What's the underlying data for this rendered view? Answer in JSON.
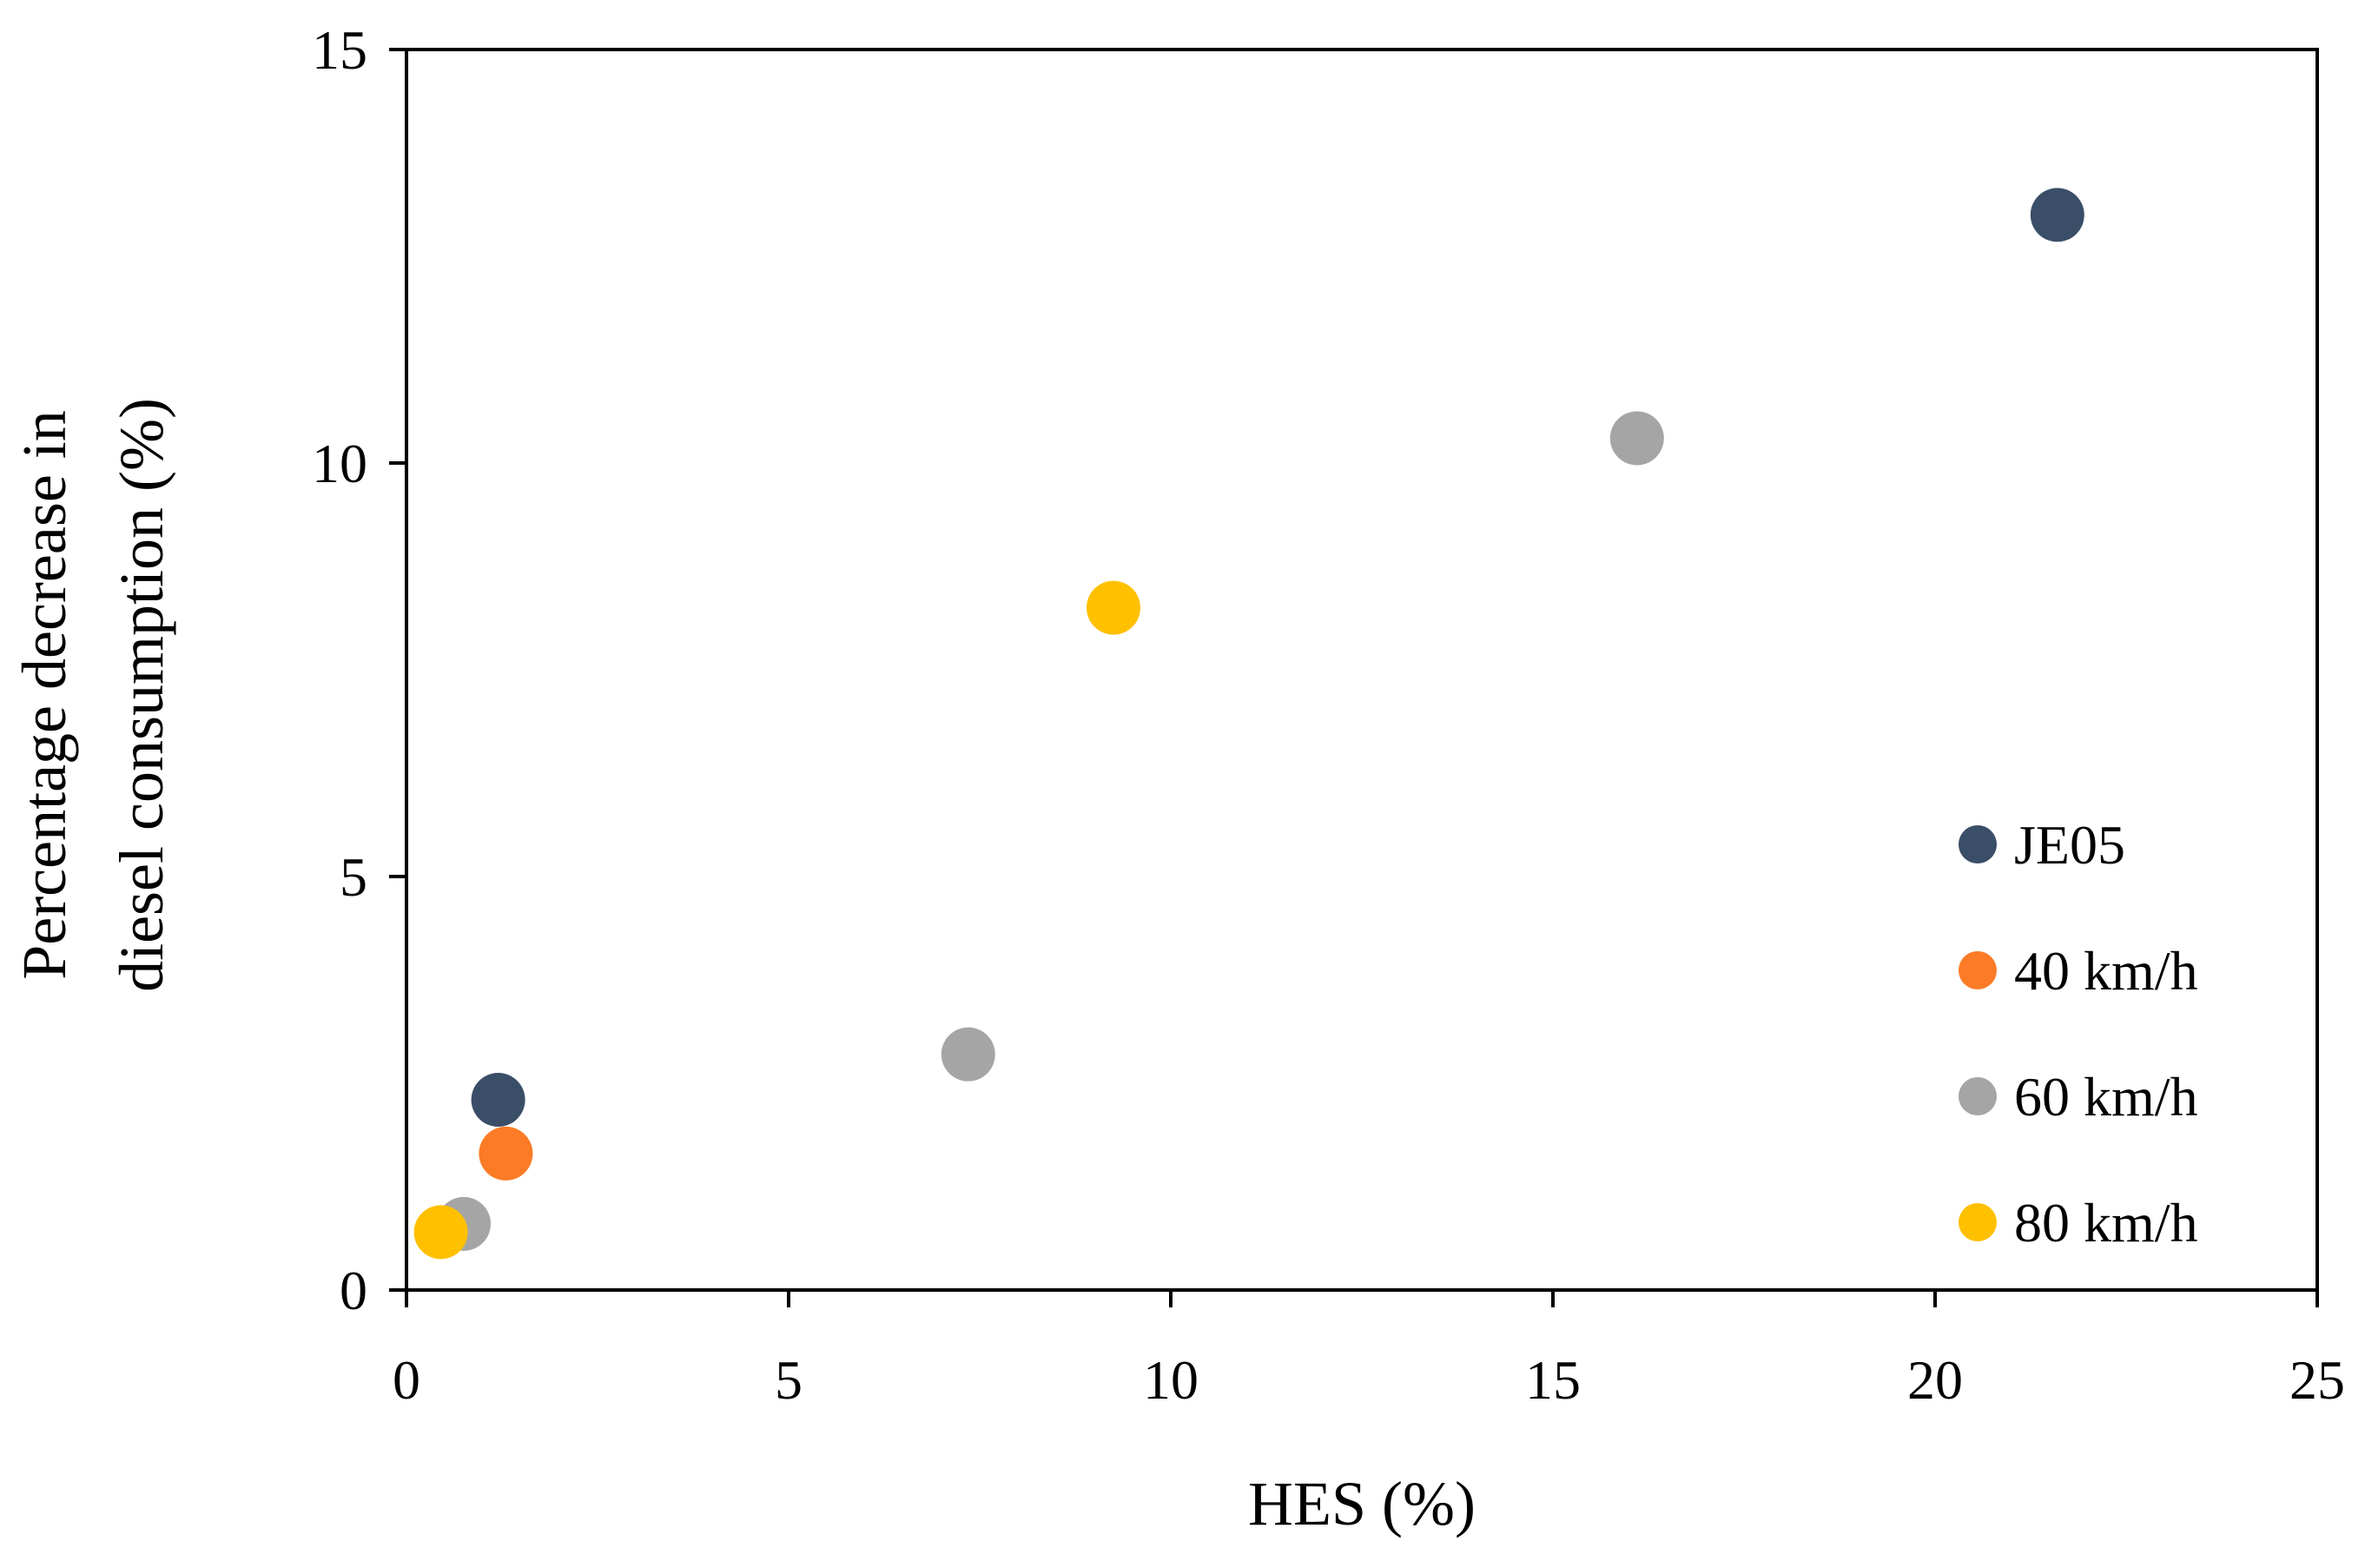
{
  "chart_data": {
    "type": "scatter",
    "xlabel": "HES (%)",
    "ylabel_lines": [
      "Percentage decrease in",
      "diesel consumption (%)"
    ],
    "xlim": [
      0,
      25
    ],
    "ylim": [
      0,
      15
    ],
    "xticks": [
      0,
      5,
      10,
      15,
      20,
      25
    ],
    "yticks": [
      0,
      5,
      10,
      15
    ],
    "xtick_labels": [
      "0",
      "5",
      "10",
      "15",
      "20",
      "25"
    ],
    "ytick_labels": [
      "0",
      "5",
      "10",
      "15"
    ],
    "grid": false,
    "legend_position": "bottom-right",
    "series": [
      {
        "name": "JE05",
        "color": "#3b4e68",
        "points": [
          {
            "x": 1.2,
            "y": 2.3
          },
          {
            "x": 21.6,
            "y": 13.0
          }
        ]
      },
      {
        "name": "40 km/h",
        "color": "#fb7b26",
        "points": [
          {
            "x": 1.3,
            "y": 1.65
          }
        ]
      },
      {
        "name": "60 km/h",
        "color": "#a5a5a5",
        "points": [
          {
            "x": 0.75,
            "y": 0.8
          },
          {
            "x": 7.35,
            "y": 2.85
          },
          {
            "x": 16.1,
            "y": 10.3
          }
        ]
      },
      {
        "name": "80 km/h",
        "color": "#ffc000",
        "points": [
          {
            "x": 0.45,
            "y": 0.7
          },
          {
            "x": 9.25,
            "y": 8.25
          }
        ]
      }
    ]
  }
}
